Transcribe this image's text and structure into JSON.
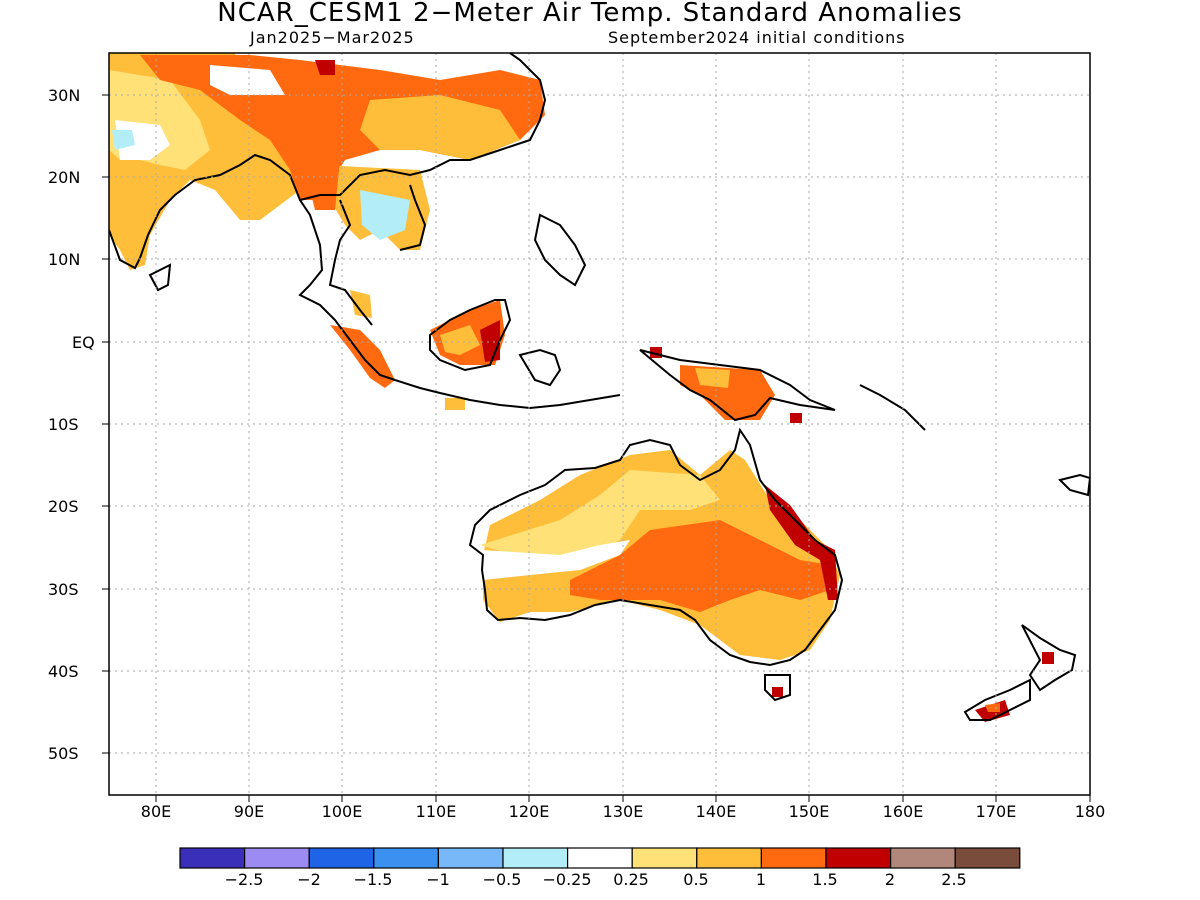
{
  "title": "NCAR_CESM1 2−Meter Air Temp. Standard Anomalies",
  "subtitle_left": "Jan2025−Mar2025",
  "subtitle_right": "September2024 initial conditions",
  "lat_labels": [
    "30N",
    "20N",
    "10N",
    "EQ",
    "10S",
    "20S",
    "30S",
    "40S",
    "50S"
  ],
  "lon_labels": [
    "80E",
    "90E",
    "100E",
    "110E",
    "120E",
    "130E",
    "140E",
    "150E",
    "160E",
    "170E",
    "180"
  ],
  "colorbar": {
    "colors": [
      "#3a2fb8",
      "#9b8bf3",
      "#1f64e6",
      "#3b90f0",
      "#78b8f8",
      "#b3edf8",
      "#ffffff",
      "#ffe178",
      "#ffbe3a",
      "#ff6a10",
      "#c00000",
      "#b0877a",
      "#7a4c3c"
    ],
    "labels": [
      "−2.5",
      "−2",
      "−1.5",
      "−1",
      "−0.5",
      "−0.25",
      "0.25",
      "0.5",
      "1",
      "1.5",
      "2",
      "2.5"
    ]
  },
  "map": {
    "lon_range": [
      75,
      180
    ],
    "lat_range": [
      -55,
      35
    ],
    "regions": [
      {
        "name": "india-and-south-asia",
        "category": "0.5 to 1",
        "color": "#ffbe3a"
      },
      {
        "name": "tibet-and-china",
        "category": "1 to 1.5",
        "color": "#ff6a10"
      },
      {
        "name": "southeast-asia",
        "category": "-0.5 to -0.25",
        "color": "#b3edf8"
      },
      {
        "name": "borneo",
        "category": "1 to 1.5",
        "color": "#ff6a10"
      },
      {
        "name": "sumatra",
        "category": "1 to 1.5",
        "color": "#ff6a10"
      },
      {
        "name": "new-guinea",
        "category": "1 to 1.5",
        "color": "#ff6a10"
      },
      {
        "name": "northern-australia",
        "category": "0.25 to 0.5",
        "color": "#ffe178"
      },
      {
        "name": "central-australia",
        "category": "1 to 1.5",
        "color": "#ff6a10"
      },
      {
        "name": "eastern-australia",
        "category": "1.5 to 2",
        "color": "#c00000"
      },
      {
        "name": "new-zealand",
        "category": "1.5 to 2",
        "color": "#c00000"
      }
    ]
  }
}
